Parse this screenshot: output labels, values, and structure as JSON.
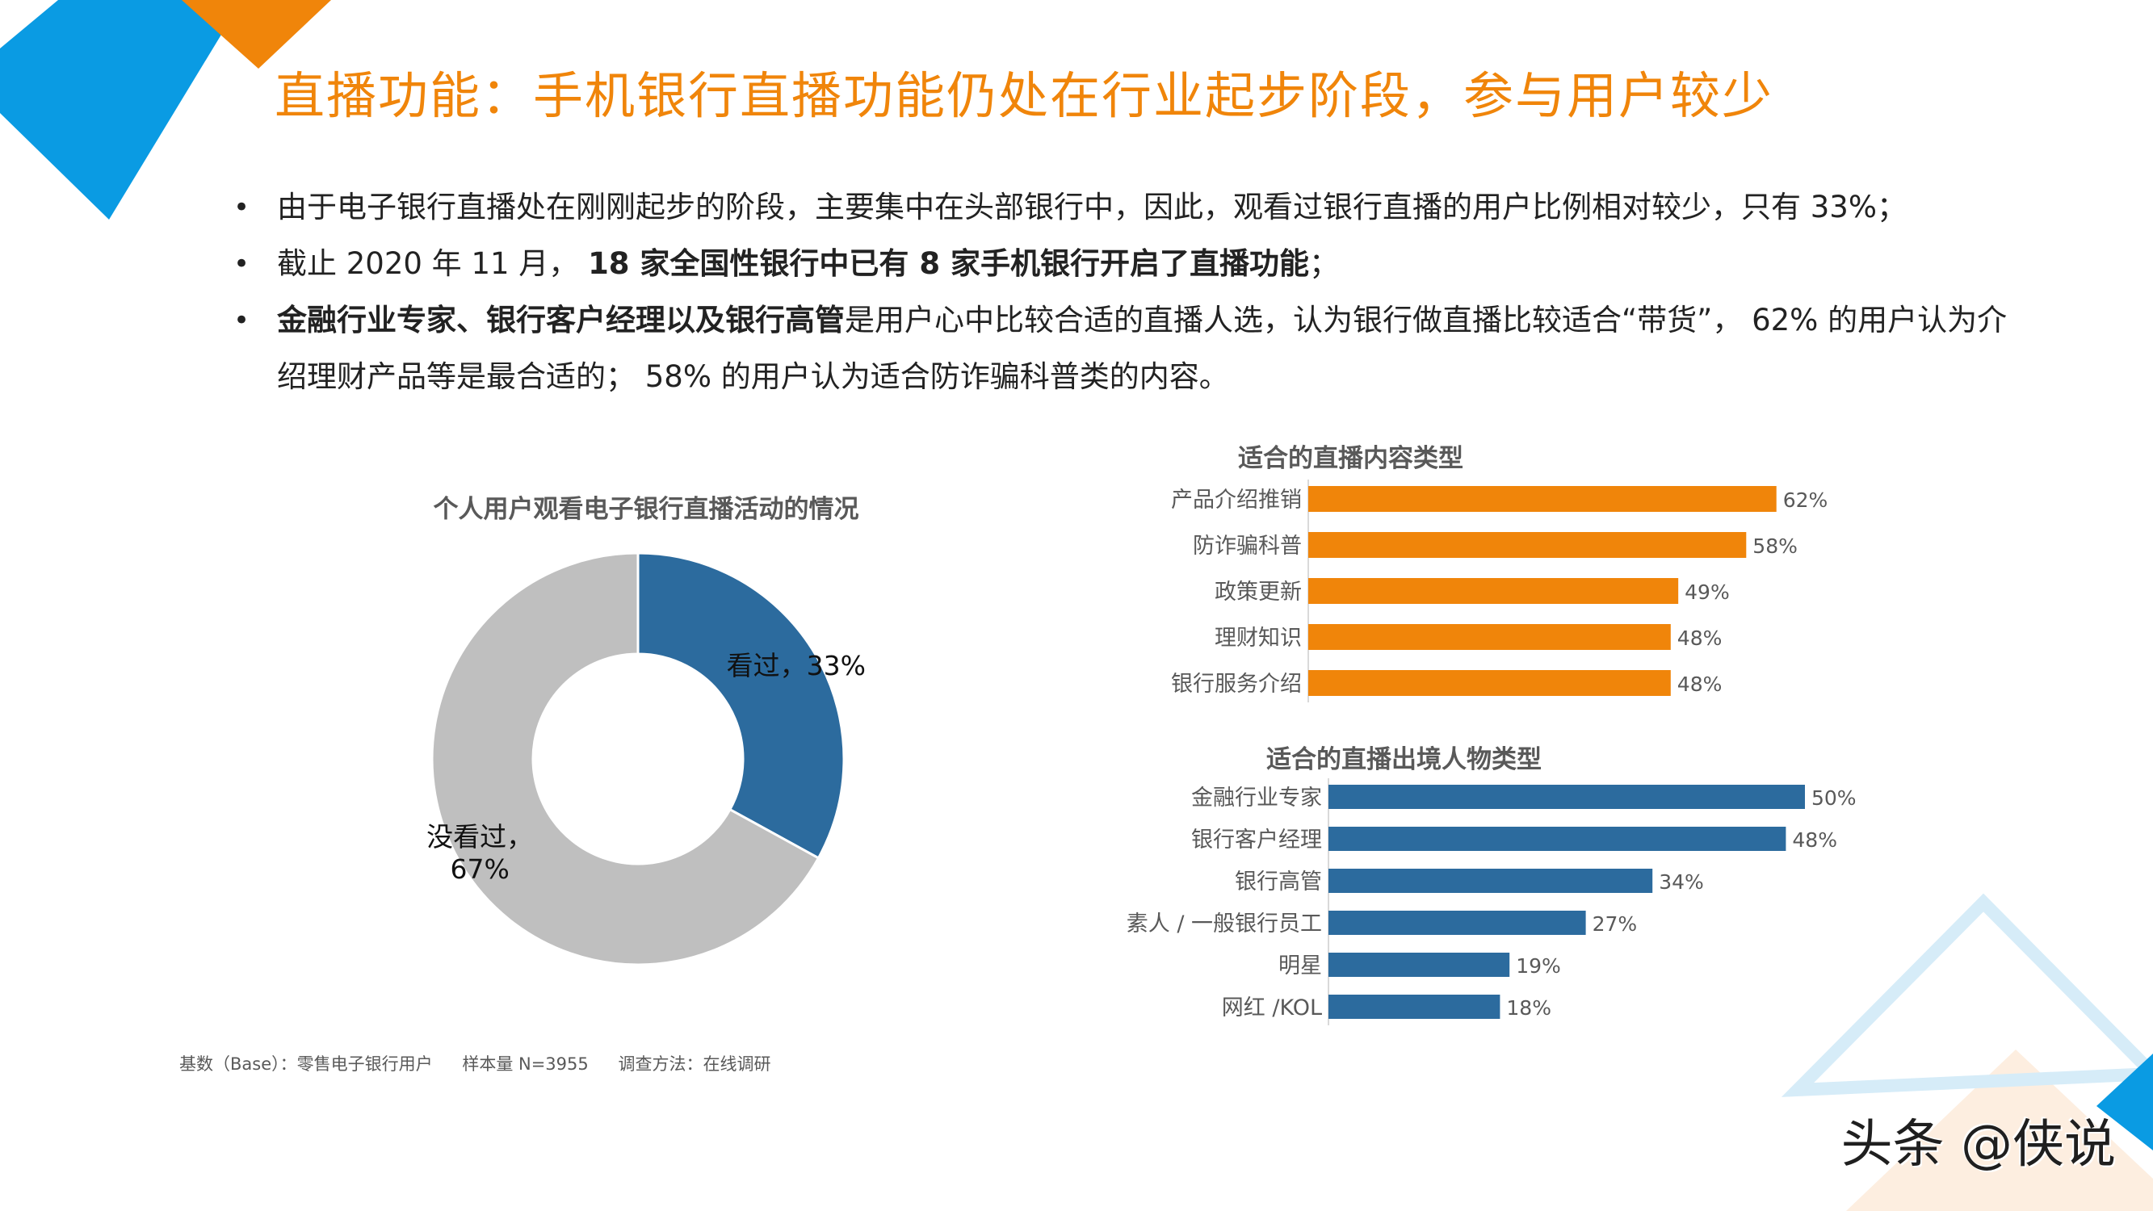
{
  "title": "直播功能：手机银行直播功能仍处在行业起步阶段，参与用户较少",
  "bullets": [
    {
      "segments": [
        {
          "text": "由于电子银行直播处在刚刚起步的阶段，主要集中在头部银行中，因此，观看过银行直播的用户比例相对较少，只有 33%；",
          "bold": false
        }
      ]
    },
    {
      "segments": [
        {
          "text": "截止 2020 年 11 月， ",
          "bold": false
        },
        {
          "text": "18 家全国性银行中已有 8 家手机银行开启了直播功能",
          "bold": true
        },
        {
          "text": "；",
          "bold": false
        }
      ]
    },
    {
      "segments": [
        {
          "text": "金融行业专家、银行客户经理以及银行高管",
          "bold": true
        },
        {
          "text": "是用户心中比较合适的直播人选，认为银行做直播比较适合“带货”， 62% 的用户认为介绍理财产品等是最合适的； 58% 的用户认为适合防诈骗科普类的内容。",
          "bold": false
        }
      ]
    }
  ],
  "chart_data": [
    {
      "type": "pie",
      "variant": "donut",
      "title": "个人用户观看电子银行直播活动的情况",
      "slices": [
        {
          "label": "看过",
          "value": 33,
          "display": "看过，33%",
          "color": "#2C6B9E"
        },
        {
          "label": "没看过",
          "value": 67,
          "display_lines": [
            "没看过，",
            "67%"
          ],
          "color": "#BFBFBF"
        }
      ]
    },
    {
      "type": "bar",
      "orientation": "horizontal",
      "title": "适合的直播内容类型",
      "color": "#F0850A",
      "categories": [
        "产品介绍推销",
        "防诈骗科普",
        "政策更新",
        "理财知识",
        "银行服务介绍"
      ],
      "values": [
        62,
        58,
        49,
        48,
        48
      ],
      "value_labels": [
        "62%",
        "58%",
        "49%",
        "48%",
        "48%"
      ]
    },
    {
      "type": "bar",
      "orientation": "horizontal",
      "title": "适合的直播出境人物类型",
      "color": "#2C6B9E",
      "categories": [
        "金融行业专家",
        "银行客户经理",
        "银行高管",
        "素人 / 一般银行员工",
        "明星",
        "网红 /KOL"
      ],
      "values": [
        50,
        48,
        34,
        27,
        19,
        18
      ],
      "value_labels": [
        "50%",
        "48%",
        "34%",
        "27%",
        "19%",
        "18%"
      ]
    }
  ],
  "footnote": {
    "base": "基数（Base）：零售电子银行用户",
    "sample": "样本量 N=3955",
    "method": "调查方法：在线调研"
  },
  "watermark": "头条 @侠说",
  "colors": {
    "accent_orange": "#F0850A",
    "accent_blue": "#2C6B9E",
    "deco_blue": "#0A9BE3",
    "donut_grey": "#BFBFBF"
  }
}
